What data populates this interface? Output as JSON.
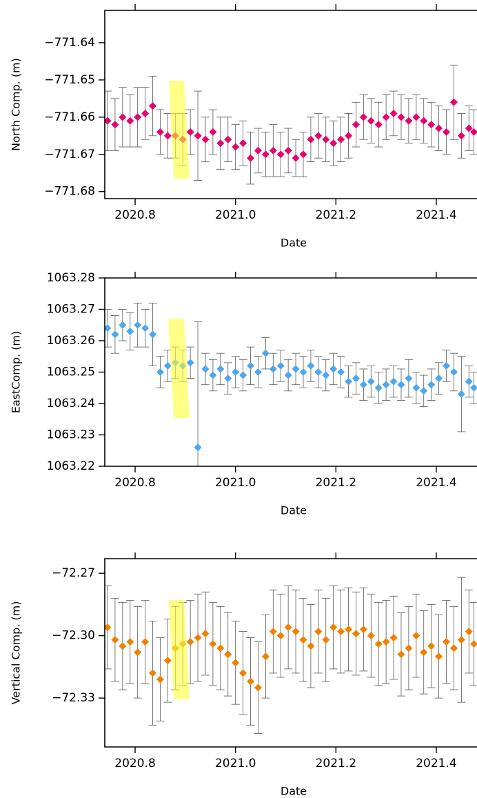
{
  "chart_data": [
    {
      "type": "scatter",
      "ylabel": "North Comp. (m)",
      "xlabel": "Date",
      "color": "#e8006f",
      "xlim": [
        2020.7395,
        2021.4811
      ],
      "ylim": [
        -771.6819,
        -771.6313
      ],
      "xticks": [
        2020.8,
        {
          "value": 2021.0,
          "label": "2021.0"
        },
        2021.2,
        2021.4
      ],
      "yticks": [
        {
          "value": -771.64,
          "label": "−771.64"
        },
        {
          "value": -771.65,
          "label": "−771.65"
        },
        {
          "value": -771.66,
          "label": "−771.66"
        },
        {
          "value": -771.67,
          "label": "−771.67"
        },
        {
          "value": -771.68,
          "label": "−771.68"
        }
      ],
      "x": [
        2020.745,
        2020.76,
        2020.775,
        2020.79,
        2020.805,
        2020.82,
        2020.835,
        2020.85,
        2020.865,
        2020.88,
        2020.895,
        2020.91,
        2020.925,
        2020.94,
        2020.955,
        2020.97,
        2020.985,
        2021.0,
        2021.015,
        2021.03,
        2021.045,
        2021.06,
        2021.075,
        2021.09,
        2021.105,
        2021.12,
        2021.135,
        2021.15,
        2021.165,
        2021.18,
        2021.195,
        2021.21,
        2021.225,
        2021.24,
        2021.255,
        2021.27,
        2021.285,
        2021.3,
        2021.315,
        2021.33,
        2021.345,
        2021.36,
        2021.375,
        2021.39,
        2021.405,
        2021.42,
        2021.435,
        2021.45,
        2021.465,
        2021.475
      ],
      "values": [
        -771.661,
        -771.662,
        -771.66,
        -771.661,
        -771.66,
        -771.659,
        -771.657,
        -771.664,
        -771.665,
        -771.665,
        -771.666,
        -771.664,
        -771.665,
        -771.666,
        -771.664,
        -771.667,
        -771.666,
        -771.668,
        -771.667,
        -771.671,
        -771.669,
        -771.67,
        -771.669,
        -771.67,
        -771.669,
        -771.671,
        -771.67,
        -771.666,
        -771.665,
        -771.666,
        -771.667,
        -771.666,
        -771.665,
        -771.662,
        -771.66,
        -771.661,
        -771.662,
        -771.66,
        -771.659,
        -771.66,
        -771.661,
        -771.66,
        -771.661,
        -771.662,
        -771.663,
        -771.664,
        -771.656,
        -771.665,
        -771.663,
        -771.664
      ],
      "errors": [
        0.008,
        0.007,
        0.008,
        0.007,
        0.008,
        0.007,
        0.008,
        0.006,
        0.006,
        0.006,
        0.007,
        0.006,
        0.012,
        0.006,
        0.006,
        0.007,
        0.006,
        0.006,
        0.006,
        0.007,
        0.006,
        0.006,
        0.007,
        0.006,
        0.006,
        0.005,
        0.006,
        0.006,
        0.006,
        0.006,
        0.006,
        0.006,
        0.006,
        0.006,
        0.006,
        0.006,
        0.006,
        0.006,
        0.006,
        0.006,
        0.006,
        0.006,
        0.006,
        0.006,
        0.006,
        0.006,
        0.01,
        0.006,
        0.006,
        0.006
      ]
    },
    {
      "type": "scatter",
      "ylabel": "EastComp. (m)",
      "xlabel": "Date",
      "color": "#4da6f0",
      "xlim": [
        2020.7395,
        2021.4811
      ],
      "ylim": [
        1063.22,
        1063.28
      ],
      "xticks": [
        2020.8,
        {
          "value": 2021.0,
          "label": "2021.0"
        },
        2021.2,
        2021.4
      ],
      "yticks": [
        1063.22,
        1063.23,
        1063.24,
        1063.25,
        1063.26,
        1063.27,
        1063.28
      ],
      "x": [
        2020.745,
        2020.76,
        2020.775,
        2020.79,
        2020.805,
        2020.82,
        2020.835,
        2020.85,
        2020.865,
        2020.88,
        2020.895,
        2020.91,
        2020.925,
        2020.94,
        2020.955,
        2020.97,
        2020.985,
        2021.0,
        2021.015,
        2021.03,
        2021.045,
        2021.06,
        2021.075,
        2021.09,
        2021.105,
        2021.12,
        2021.135,
        2021.15,
        2021.165,
        2021.18,
        2021.195,
        2021.21,
        2021.225,
        2021.24,
        2021.255,
        2021.27,
        2021.285,
        2021.3,
        2021.315,
        2021.33,
        2021.345,
        2021.36,
        2021.375,
        2021.39,
        2021.405,
        2021.42,
        2021.435,
        2021.45,
        2021.465,
        2021.475
      ],
      "values": [
        1063.264,
        1063.262,
        1063.265,
        1063.263,
        1063.265,
        1063.264,
        1063.262,
        1063.25,
        1063.252,
        1063.253,
        1063.252,
        1063.253,
        1063.226,
        1063.251,
        1063.249,
        1063.251,
        1063.248,
        1063.25,
        1063.249,
        1063.252,
        1063.25,
        1063.256,
        1063.251,
        1063.252,
        1063.249,
        1063.251,
        1063.25,
        1063.252,
        1063.25,
        1063.249,
        1063.251,
        1063.25,
        1063.247,
        1063.248,
        1063.246,
        1063.247,
        1063.245,
        1063.246,
        1063.247,
        1063.246,
        1063.248,
        1063.245,
        1063.244,
        1063.246,
        1063.248,
        1063.252,
        1063.25,
        1063.243,
        1063.247,
        1063.245
      ],
      "errors": [
        0.006,
        0.006,
        0.005,
        0.006,
        0.007,
        0.006,
        0.01,
        0.005,
        0.005,
        0.005,
        0.005,
        0.005,
        0.04,
        0.005,
        0.005,
        0.005,
        0.005,
        0.005,
        0.005,
        0.006,
        0.005,
        0.005,
        0.005,
        0.005,
        0.005,
        0.005,
        0.005,
        0.005,
        0.005,
        0.005,
        0.005,
        0.005,
        0.005,
        0.005,
        0.005,
        0.005,
        0.005,
        0.005,
        0.005,
        0.005,
        0.006,
        0.005,
        0.005,
        0.005,
        0.005,
        0.005,
        0.006,
        0.012,
        0.005,
        0.005
      ]
    },
    {
      "type": "scatter",
      "ylabel": "Vertical Comp. (m)",
      "xlabel": "Date",
      "color": "#f08000",
      "xlim": [
        2020.7395,
        2021.4811
      ],
      "ylim": [
        -72.3535,
        -72.263
      ],
      "xticks": [
        2020.8,
        {
          "value": 2021.0,
          "label": "2021.0"
        },
        2021.2,
        2021.4
      ],
      "yticks": [
        {
          "value": -72.27,
          "label": "−72.27"
        },
        {
          "value": -72.3,
          "label": "−72.30"
        },
        {
          "value": -72.33,
          "label": "−72.33"
        }
      ],
      "x": [
        2020.745,
        2020.76,
        2020.775,
        2020.79,
        2020.805,
        2020.82,
        2020.835,
        2020.85,
        2020.865,
        2020.88,
        2020.895,
        2020.91,
        2020.925,
        2020.94,
        2020.955,
        2020.97,
        2020.985,
        2021.0,
        2021.015,
        2021.03,
        2021.045,
        2021.06,
        2021.075,
        2021.09,
        2021.105,
        2021.12,
        2021.135,
        2021.15,
        2021.165,
        2021.18,
        2021.195,
        2021.21,
        2021.225,
        2021.24,
        2021.255,
        2021.27,
        2021.285,
        2021.3,
        2021.315,
        2021.33,
        2021.345,
        2021.36,
        2021.375,
        2021.39,
        2021.405,
        2021.42,
        2021.435,
        2021.45,
        2021.465,
        2021.475
      ],
      "values": [
        -72.296,
        -72.302,
        -72.305,
        -72.303,
        -72.308,
        -72.303,
        -72.318,
        -72.321,
        -72.312,
        -72.306,
        -72.304,
        -72.303,
        -72.301,
        -72.299,
        -72.304,
        -72.306,
        -72.309,
        -72.313,
        -72.318,
        -72.322,
        -72.325,
        -72.31,
        -72.298,
        -72.3,
        -72.296,
        -72.298,
        -72.302,
        -72.305,
        -72.298,
        -72.302,
        -72.296,
        -72.298,
        -72.297,
        -72.299,
        -72.297,
        -72.3,
        -72.304,
        -72.303,
        -72.301,
        -72.309,
        -72.306,
        -72.3,
        -72.308,
        -72.305,
        -72.31,
        -72.303,
        -72.306,
        -72.302,
        -72.298,
        -72.304
      ],
      "errors": [
        0.02,
        0.02,
        0.021,
        0.02,
        0.022,
        0.02,
        0.025,
        0.02,
        0.02,
        0.02,
        0.02,
        0.02,
        0.021,
        0.02,
        0.02,
        0.02,
        0.02,
        0.02,
        0.02,
        0.021,
        0.022,
        0.02,
        0.02,
        0.02,
        0.02,
        0.02,
        0.02,
        0.02,
        0.02,
        0.02,
        0.02,
        0.02,
        0.02,
        0.02,
        0.02,
        0.02,
        0.02,
        0.02,
        0.02,
        0.02,
        0.02,
        0.02,
        0.02,
        0.02,
        0.02,
        0.02,
        0.02,
        0.03,
        0.02,
        0.02
      ]
    }
  ]
}
